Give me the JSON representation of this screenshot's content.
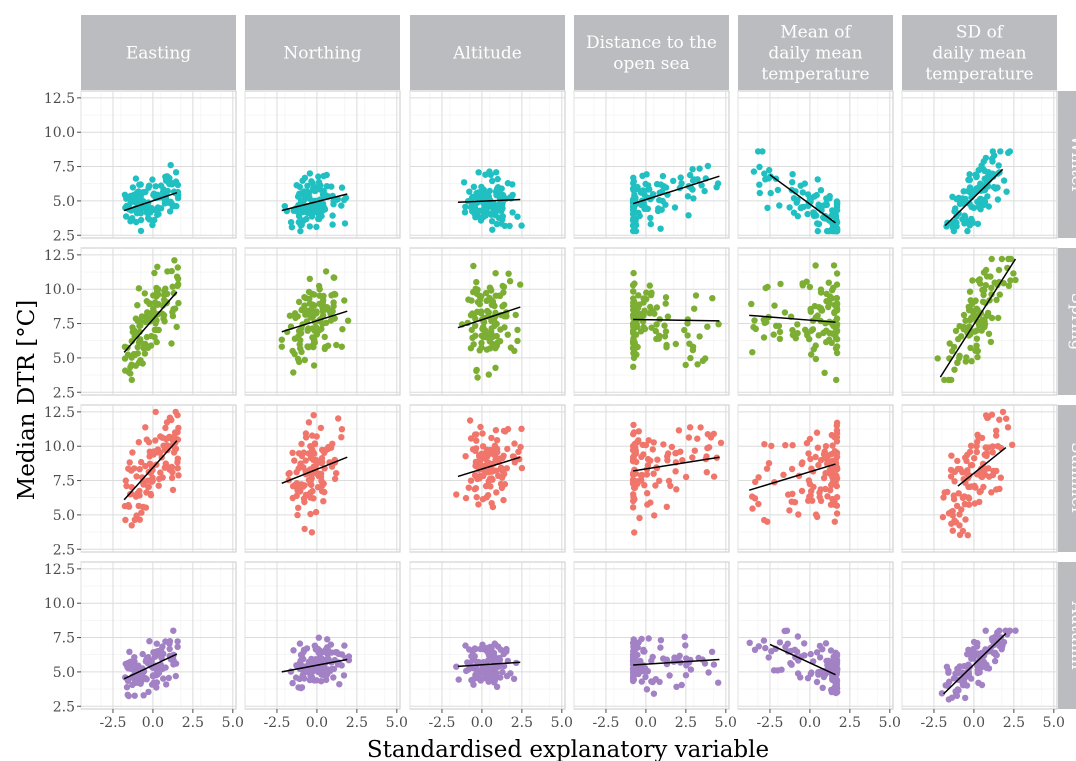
{
  "chart_data": {
    "type": "scatter",
    "xlabel": "Standardised explanatory variable",
    "ylabel": "Median DTR [°C]",
    "xlim": [
      -4.5,
      5.2
    ],
    "ylim": [
      2.3,
      13.0
    ],
    "xticks": [
      -2.5,
      0.0,
      2.5,
      5.0
    ],
    "xtick_labels": [
      "-2.5",
      "0.0",
      "2.5",
      "5.0"
    ],
    "yticks": [
      2.5,
      5.0,
      7.5,
      10.0,
      12.5
    ],
    "ytick_labels": [
      "2.5",
      "5.0",
      "7.5",
      "10.0",
      "12.5"
    ],
    "grid": true,
    "columns": [
      {
        "label": "Easting",
        "x_range": [
          -1.8,
          1.6
        ],
        "shape": "uniform"
      },
      {
        "label": "Northing",
        "x_range": [
          -2.2,
          2.0
        ],
        "shape": "normal"
      },
      {
        "label": "Altitude",
        "x_range": [
          -1.6,
          2.5
        ],
        "shape": "normal"
      },
      {
        "label": "Distance to the\nopen sea",
        "x_range": [
          -0.8,
          4.7
        ],
        "shape": "skewed"
      },
      {
        "label": "Mean of\ndaily mean\ntemperature",
        "x_range": [
          -3.8,
          1.7
        ],
        "shape": "leftskew"
      },
      {
        "label": "SD of\ndaily mean\ntemperature",
        "x_range": [
          -2.3,
          2.6
        ],
        "shape": "normal"
      }
    ],
    "series": [
      {
        "name": "Winter",
        "color": "#20bfc1",
        "y_range": [
          2.8,
          8.6
        ],
        "fits": [
          [
            -1.8,
            4.3,
            1.5,
            5.6
          ],
          [
            -2.2,
            4.3,
            1.9,
            5.5
          ],
          [
            -1.5,
            4.9,
            2.4,
            5.1
          ],
          [
            -0.8,
            4.8,
            4.6,
            6.8
          ],
          [
            -2.5,
            6.9,
            1.6,
            3.4
          ],
          [
            -1.8,
            3.2,
            1.8,
            7.3
          ]
        ]
      },
      {
        "name": "Spring",
        "color": "#7cae33",
        "y_range": [
          3.4,
          12.2
        ],
        "fits": [
          [
            -1.8,
            5.4,
            1.5,
            9.8
          ],
          [
            -2.2,
            6.9,
            1.9,
            8.4
          ],
          [
            -1.5,
            7.2,
            2.4,
            8.7
          ],
          [
            -0.8,
            7.8,
            4.6,
            7.7
          ],
          [
            -3.8,
            8.1,
            1.6,
            7.6
          ],
          [
            -2.1,
            3.6,
            2.6,
            12.2
          ]
        ]
      },
      {
        "name": "Summer",
        "color": "#f0766c",
        "y_range": [
          3.2,
          12.5
        ],
        "fits": [
          [
            -1.8,
            6.1,
            1.5,
            10.4
          ],
          [
            -2.2,
            7.3,
            1.9,
            9.2
          ],
          [
            -1.5,
            7.8,
            2.4,
            9.2
          ],
          [
            -0.8,
            8.2,
            4.6,
            9.2
          ],
          [
            -3.8,
            6.8,
            1.6,
            8.7
          ],
          [
            -1.0,
            7.1,
            2.0,
            9.9
          ]
        ]
      },
      {
        "name": "Autumn",
        "color": "#a281c5",
        "y_range": [
          3.0,
          8.0
        ],
        "fits": [
          [
            -1.8,
            4.5,
            1.5,
            6.3
          ],
          [
            -2.2,
            5.0,
            1.9,
            5.9
          ],
          [
            -1.5,
            5.4,
            2.4,
            5.7
          ],
          [
            -0.8,
            5.5,
            4.6,
            5.9
          ],
          [
            -2.5,
            7.0,
            1.6,
            4.8
          ],
          [
            -1.9,
            3.4,
            2.0,
            7.8
          ]
        ]
      }
    ]
  }
}
